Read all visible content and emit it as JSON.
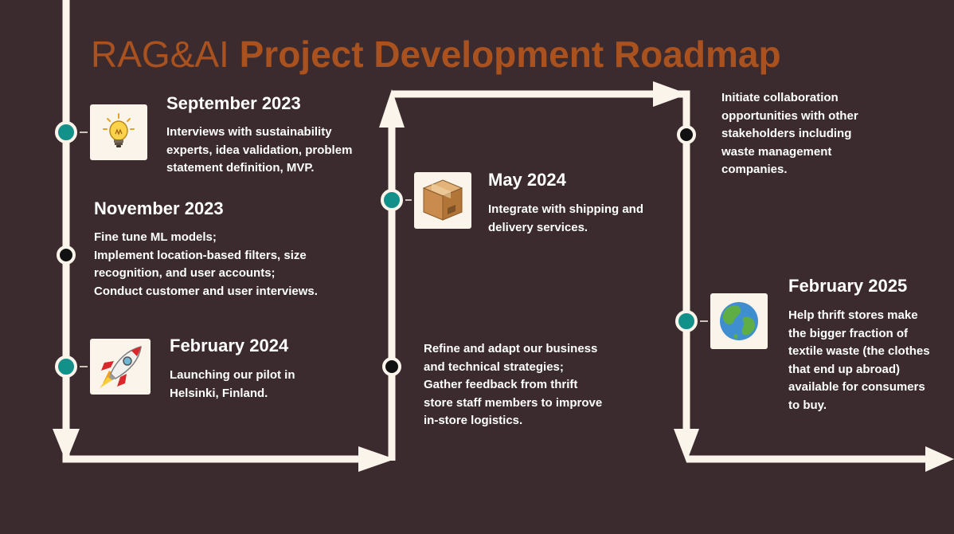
{
  "title": {
    "light": "RAG&AI",
    "bold": "Project Development Roadmap"
  },
  "colors": {
    "background": "#3b2b2e",
    "track": "#fbf4ea",
    "title": "#a9521f",
    "node_filled": "#12918a",
    "node_empty": "#111111",
    "text": "#ffffff"
  },
  "milestones": [
    {
      "id": "sep2023",
      "heading": "September 2023",
      "icon": "lightbulb-icon",
      "node": "filled",
      "lines": [
        "Interviews with sustainability",
        "experts, idea validation, problem",
        "statement definition, MVP."
      ]
    },
    {
      "id": "nov2023",
      "heading": "November 2023",
      "icon": "",
      "node": "empty",
      "lines": [
        "Fine tune ML models;",
        "Implement location-based filters, size",
        "recognition, and user accounts;",
        "Conduct customer and user interviews."
      ]
    },
    {
      "id": "feb2024",
      "heading": "February 2024",
      "icon": "rocket-icon",
      "node": "filled",
      "lines": [
        "Launching our pilot in",
        "Helsinki, Finland."
      ]
    },
    {
      "id": "may2024",
      "heading": "May 2024",
      "icon": "package-icon",
      "node": "filled",
      "lines": [
        "Integrate with shipping and",
        "delivery services."
      ]
    },
    {
      "id": "later2024",
      "heading": "",
      "icon": "",
      "node": "empty",
      "lines": [
        "Refine and adapt our business",
        "and technical strategies;",
        "Gather feedback from thrift",
        "store staff members to improve",
        "in-store logistics."
      ]
    },
    {
      "id": "collab",
      "heading": "",
      "icon": "",
      "node": "empty",
      "lines": [
        "Initiate collaboration",
        "opportunities with other",
        "stakeholders including",
        "waste management",
        "companies."
      ]
    },
    {
      "id": "feb2025",
      "heading": "February 2025",
      "icon": "globe-icon",
      "node": "filled",
      "lines": [
        "Help thrift stores make",
        "the bigger fraction of",
        "textile waste (the clothes",
        "that end up abroad)",
        "available for consumers",
        "to buy."
      ]
    }
  ]
}
